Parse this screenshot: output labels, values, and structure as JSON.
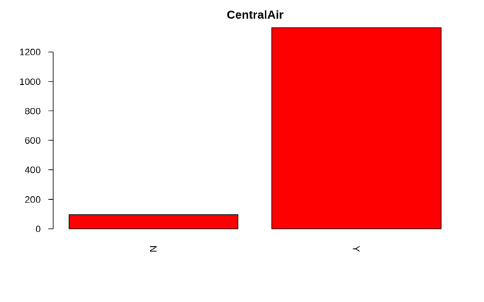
{
  "chart_data": {
    "type": "bar",
    "title": "CentralAir",
    "xlabel": "",
    "ylabel": "",
    "categories": [
      "N",
      "Y"
    ],
    "values": [
      95,
      1365
    ],
    "ylim": [
      0,
      1365
    ],
    "yticks": [
      0,
      200,
      400,
      600,
      800,
      1000,
      1200
    ],
    "bar_color": "#ff0000",
    "outline_color": "#000000",
    "category_label_orientation": "rotated-90",
    "grid": false,
    "legend": "none"
  }
}
